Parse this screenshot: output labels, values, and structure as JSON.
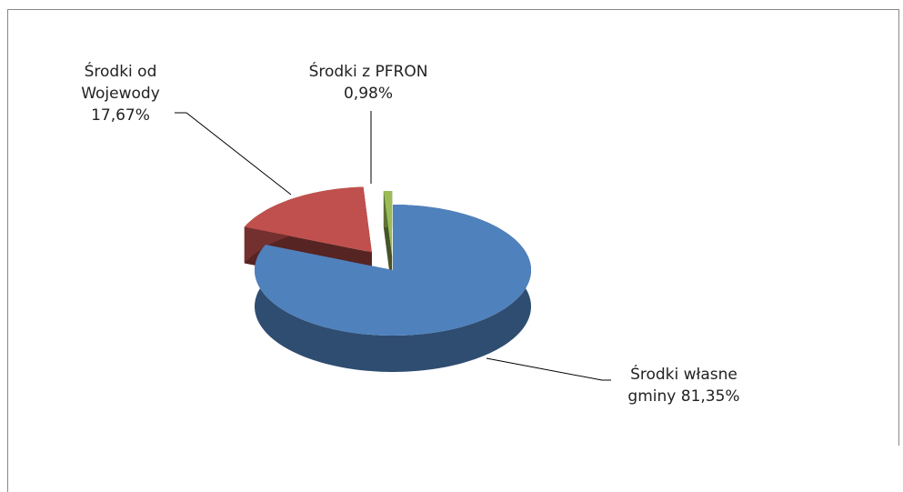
{
  "chart_data": {
    "type": "pie3d",
    "categories": [
      "Środki własne gminy",
      "Środki od Wojewody",
      "Środki z PFRON"
    ],
    "values": [
      81.35,
      17.67,
      0.98
    ],
    "value_labels": [
      "81,35%",
      "17,67%",
      "0,98%"
    ],
    "colors": [
      "#4f81bd",
      "#c0504d",
      "#9bbb59"
    ]
  }
}
